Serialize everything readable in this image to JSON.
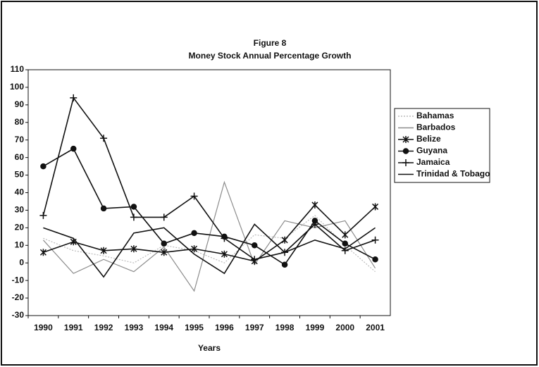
{
  "chart_data": {
    "type": "line",
    "title": "Figure 8",
    "subtitle": "Money Stock Annual Percentage Growth",
    "x_label": "Years",
    "categories": [
      "1990",
      "1991",
      "1992",
      "1993",
      "1994",
      "1995",
      "1996",
      "1997",
      "1998",
      "1999",
      "2000",
      "2001"
    ],
    "series": [
      {
        "name": "Bahamas",
        "color": "#bbbbbb",
        "marker": "none",
        "dash": true,
        "values": [
          14,
          7,
          4,
          0,
          10,
          7,
          0,
          16,
          14,
          27,
          10,
          -5
        ]
      },
      {
        "name": "Barbados",
        "color": "#8c8c8c",
        "marker": "none",
        "dash": false,
        "values": [
          13,
          -6,
          2,
          -5,
          9,
          -16,
          46,
          -1,
          24,
          20,
          24,
          -3
        ]
      },
      {
        "name": "Belize",
        "color": "#111111",
        "marker": "asterisk",
        "dash": false,
        "values": [
          6,
          12,
          7,
          8,
          6,
          8,
          5,
          1,
          13,
          33,
          16,
          32
        ]
      },
      {
        "name": "Guyana",
        "color": "#111111",
        "marker": "circle",
        "dash": false,
        "values": [
          55,
          65,
          31,
          32,
          11,
          17,
          15,
          10,
          -1,
          24,
          11,
          2
        ]
      },
      {
        "name": "Jamaica",
        "color": "#111111",
        "marker": "plus",
        "dash": false,
        "values": [
          27,
          94,
          71,
          26,
          26,
          38,
          14,
          2,
          6,
          22,
          7,
          13
        ]
      },
      {
        "name": "Trinidad & Tobago",
        "color": "#111111",
        "marker": "none",
        "dash": false,
        "values": [
          20,
          14,
          -8,
          17,
          20,
          5,
          -6,
          22,
          6,
          13,
          8,
          20
        ]
      }
    ],
    "ylim": [
      -30,
      110
    ],
    "yticks": [
      -30,
      -20,
      -10,
      0,
      10,
      20,
      30,
      40,
      50,
      60,
      70,
      80,
      90,
      100,
      110
    ],
    "legend": "right"
  }
}
